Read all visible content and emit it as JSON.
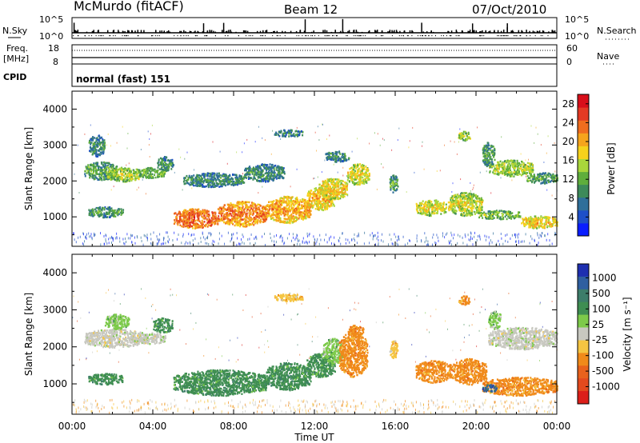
{
  "header": {
    "station": "McMurdo (fitACF)",
    "beam": "Beam 12",
    "date": "07/Oct/2010"
  },
  "top_panel": {
    "left_label": "N.Sky",
    "right_label": "N.Search",
    "left_ticks": [
      "10^5",
      "10^0"
    ],
    "right_ticks": [
      "10^5",
      "10^0"
    ]
  },
  "freq_panel": {
    "left_label_line1": "Freq.",
    "left_label_line2": "[MHz]",
    "right_label": "Nave",
    "left_ticks": [
      "18",
      "8"
    ],
    "right_ticks": [
      "60",
      "0"
    ]
  },
  "cpid": {
    "label": "CPID",
    "value": "normal (fast) 151"
  },
  "chart_data": [
    {
      "type": "heatmap",
      "title": "",
      "xlabel": "Time UT",
      "ylabel": "Slant Range [km]",
      "xlim_hours": [
        0,
        24
      ],
      "ylim": [
        180,
        4500
      ],
      "x_tick_labels": [
        "00:00",
        "04:00",
        "08:00",
        "12:00",
        "16:00",
        "20:00",
        "00:00"
      ],
      "y_tick_labels": [
        "1000",
        "2000",
        "3000",
        "4000"
      ],
      "y_ticks": [
        1000,
        2000,
        3000,
        4000
      ],
      "colorbar": {
        "label": "Power [dB]",
        "tick_labels": [
          "4",
          "8",
          "12",
          "16",
          "20",
          "24",
          "28"
        ],
        "ticks": [
          4,
          8,
          12,
          16,
          20,
          24,
          28
        ],
        "range": [
          0,
          30
        ],
        "colors": [
          "#0a1dff",
          "#1e4fc8",
          "#2f6f9a",
          "#3d8a5a",
          "#5fae3c",
          "#a9d63b",
          "#f6d21c",
          "#f6a41c",
          "#ef6d1f",
          "#e33a23",
          "#d80f1a"
        ]
      },
      "regions": [
        {
          "t0": 0.6,
          "t1": 2.2,
          "r0": 2050,
          "r1": 2550,
          "level": 8
        },
        {
          "t0": 1.7,
          "t1": 3.4,
          "r0": 2000,
          "r1": 2400,
          "level": 12
        },
        {
          "t0": 3.2,
          "t1": 4.6,
          "r0": 2100,
          "r1": 2400,
          "level": 10
        },
        {
          "t0": 0.8,
          "t1": 2.5,
          "r0": 1000,
          "r1": 1300,
          "level": 7
        },
        {
          "t0": 0.8,
          "t1": 1.6,
          "r0": 2700,
          "r1": 3300,
          "level": 6
        },
        {
          "t0": 4.2,
          "t1": 5.0,
          "r0": 2300,
          "r1": 2700,
          "level": 6
        },
        {
          "t0": 5.0,
          "t1": 7.2,
          "r0": 700,
          "r1": 1250,
          "level": 22
        },
        {
          "t0": 7.2,
          "t1": 9.6,
          "r0": 750,
          "r1": 1450,
          "level": 20
        },
        {
          "t0": 9.6,
          "t1": 11.8,
          "r0": 850,
          "r1": 1600,
          "level": 18
        },
        {
          "t0": 11.6,
          "t1": 13.0,
          "r0": 1200,
          "r1": 1850,
          "level": 17
        },
        {
          "t0": 12.2,
          "t1": 13.6,
          "r0": 1500,
          "r1": 2100,
          "level": 15
        },
        {
          "t0": 13.6,
          "t1": 14.7,
          "r0": 1900,
          "r1": 2500,
          "level": 14
        },
        {
          "t0": 12.5,
          "t1": 13.7,
          "r0": 2550,
          "r1": 2850,
          "level": 6
        },
        {
          "t0": 10.0,
          "t1": 11.4,
          "r0": 3250,
          "r1": 3450,
          "level": 5
        },
        {
          "t0": 15.7,
          "t1": 16.1,
          "r0": 1700,
          "r1": 2200,
          "level": 7
        },
        {
          "t0": 17.0,
          "t1": 18.5,
          "r0": 1050,
          "r1": 1500,
          "level": 14
        },
        {
          "t0": 18.6,
          "t1": 20.3,
          "r0": 1050,
          "r1": 1700,
          "level": 13
        },
        {
          "t0": 20.1,
          "t1": 22.2,
          "r0": 950,
          "r1": 1200,
          "level": 10
        },
        {
          "t0": 22.2,
          "t1": 24.0,
          "r0": 700,
          "r1": 1050,
          "level": 16
        },
        {
          "t0": 20.6,
          "t1": 22.8,
          "r0": 2150,
          "r1": 2600,
          "level": 12
        },
        {
          "t0": 22.5,
          "t1": 24.0,
          "r0": 1950,
          "r1": 2250,
          "level": 8
        },
        {
          "t0": 20.3,
          "t1": 20.9,
          "r0": 2400,
          "r1": 3100,
          "level": 7
        },
        {
          "t0": 19.1,
          "t1": 19.7,
          "r0": 3150,
          "r1": 3400,
          "level": 12
        },
        {
          "t0": 5.5,
          "t1": 8.5,
          "r0": 1850,
          "r1": 2250,
          "level": 6
        },
        {
          "t0": 8.5,
          "t1": 10.5,
          "r0": 2000,
          "r1": 2500,
          "level": 6
        }
      ]
    },
    {
      "type": "heatmap",
      "title": "",
      "xlabel": "Time UT",
      "ylabel": "Slant Range [km]",
      "xlim_hours": [
        0,
        24
      ],
      "ylim": [
        180,
        4500
      ],
      "x_tick_labels": [
        "00:00",
        "04:00",
        "08:00",
        "12:00",
        "16:00",
        "20:00",
        "00:00"
      ],
      "y_tick_labels": [
        "1000",
        "2000",
        "3000",
        "4000"
      ],
      "y_ticks": [
        1000,
        2000,
        3000,
        4000
      ],
      "colorbar": {
        "label": "Velocity [m s⁻¹]",
        "tick_labels": [
          "1000",
          "500",
          "100",
          "25",
          "-25",
          "-100",
          "-500",
          "-1000"
        ],
        "colors": [
          "#1e2fb0",
          "#2f5fa0",
          "#3d7d6a",
          "#3f8e52",
          "#7dca4a",
          "#c8c8c0",
          "#f5c542",
          "#f08a1a",
          "#e8621c",
          "#e34a1e",
          "#dc1f1a"
        ]
      },
      "regions": [
        {
          "t0": 0.6,
          "t1": 3.6,
          "r0": 2000,
          "r1": 2500,
          "vel": "gs"
        },
        {
          "t0": 3.2,
          "t1": 4.6,
          "r0": 2100,
          "r1": 2400,
          "vel": "gs"
        },
        {
          "t0": 1.6,
          "t1": 2.8,
          "r0": 2500,
          "r1": 2900,
          "vel": "pos_low"
        },
        {
          "t0": 0.8,
          "t1": 2.5,
          "r0": 1000,
          "r1": 1300,
          "vel": "pos_mid"
        },
        {
          "t0": 4.0,
          "t1": 5.0,
          "r0": 2400,
          "r1": 2800,
          "vel": "pos_mid"
        },
        {
          "t0": 5.0,
          "t1": 9.6,
          "r0": 700,
          "r1": 1400,
          "vel": "pos_mid"
        },
        {
          "t0": 9.6,
          "t1": 11.8,
          "r0": 850,
          "r1": 1600,
          "vel": "pos_mid"
        },
        {
          "t0": 11.6,
          "t1": 13.0,
          "r0": 1200,
          "r1": 1850,
          "vel": "pos_mid"
        },
        {
          "t0": 12.4,
          "t1": 13.4,
          "r0": 1550,
          "r1": 2250,
          "vel": "pos_low"
        },
        {
          "t0": 13.2,
          "t1": 14.6,
          "r0": 1200,
          "r1": 2450,
          "vel": "neg_mid"
        },
        {
          "t0": 13.6,
          "t1": 14.4,
          "r0": 2300,
          "r1": 2600,
          "vel": "neg_mid"
        },
        {
          "t0": 17.0,
          "t1": 18.8,
          "r0": 1050,
          "r1": 1650,
          "vel": "neg_mid"
        },
        {
          "t0": 18.8,
          "t1": 20.5,
          "r0": 1000,
          "r1": 1700,
          "vel": "neg_mid"
        },
        {
          "t0": 20.3,
          "t1": 24.0,
          "r0": 700,
          "r1": 1200,
          "vel": "neg_mid"
        },
        {
          "t0": 20.6,
          "t1": 24.0,
          "r0": 1950,
          "r1": 2550,
          "vel": "gs"
        },
        {
          "t0": 20.6,
          "t1": 21.2,
          "r0": 2500,
          "r1": 3000,
          "vel": "pos_low"
        },
        {
          "t0": 10.0,
          "t1": 11.4,
          "r0": 3250,
          "r1": 3450,
          "vel": "neg_low"
        },
        {
          "t0": 19.1,
          "t1": 19.7,
          "r0": 3150,
          "r1": 3400,
          "vel": "neg_mid"
        },
        {
          "t0": 15.7,
          "t1": 16.1,
          "r0": 1700,
          "r1": 2200,
          "vel": "neg_low"
        },
        {
          "t0": 20.3,
          "t1": 21.0,
          "r0": 800,
          "r1": 1000,
          "vel": "pos_high"
        }
      ]
    }
  ]
}
